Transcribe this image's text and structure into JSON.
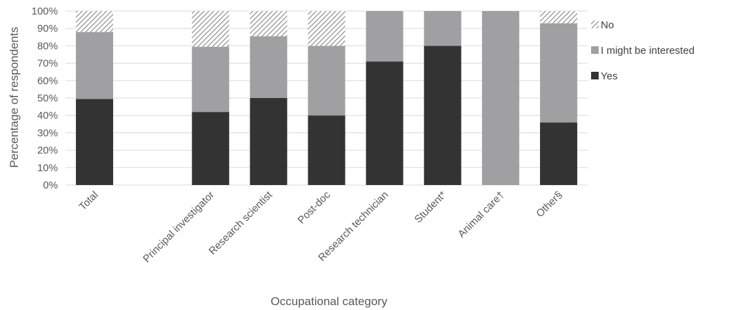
{
  "chart_data": {
    "type": "bar",
    "stacked": true,
    "xlabel": "Occupational category",
    "ylabel": "Percentage of respondents",
    "ylim": [
      0,
      100
    ],
    "y_ticks": [
      "0%",
      "10%",
      "20%",
      "30%",
      "40%",
      "50%",
      "60%",
      "70%",
      "80%",
      "90%",
      "100%"
    ],
    "categories": [
      "Total",
      "",
      "Principal investigator",
      "Research scientist",
      "Post-doc",
      "Research technician",
      "Student*",
      "Animal care†",
      "Other§"
    ],
    "series": [
      {
        "name": "Yes",
        "color": "#333333",
        "pattern": "solid",
        "values": [
          49.5,
          null,
          42,
          50,
          40,
          71,
          80,
          0,
          36
        ]
      },
      {
        "name": "I might be interested",
        "color": "#a0a0a2",
        "pattern": "solid",
        "values": [
          38.5,
          null,
          37.5,
          35.5,
          40,
          29,
          20,
          100,
          57
        ]
      },
      {
        "name": "No",
        "color": "#a6a6a6",
        "pattern": "diagonal-hatch",
        "values": [
          12,
          null,
          20.5,
          14.5,
          20,
          0,
          0,
          0,
          7
        ]
      }
    ],
    "legend_order": [
      "No",
      "I might be interested",
      "Yes"
    ],
    "legend_position": "right",
    "grid": true
  }
}
